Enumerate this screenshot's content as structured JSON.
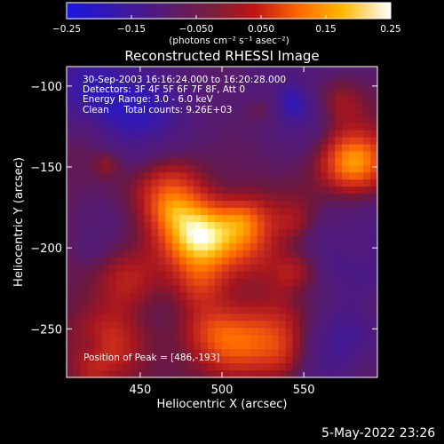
{
  "chart_data": {
    "type": "heatmap",
    "title": "Reconstructed RHESSI Image",
    "xlabel": "Heliocentric X (arcsec)",
    "ylabel": "Heliocentric Y (arcsec)",
    "xlim": [
      405,
      595
    ],
    "ylim": [
      -280,
      -88
    ],
    "x_ticks": [
      450,
      500,
      550
    ],
    "y_ticks": [
      -100,
      -150,
      -200,
      -250
    ],
    "colorbar": {
      "ticks": [
        -0.25,
        -0.15,
        -0.05,
        0.05,
        0.15,
        0.25
      ],
      "tick_labels": [
        "−0.25",
        "−0.15",
        "−0.050",
        "0.050",
        "0.15",
        "0.25"
      ],
      "range": [
        -0.25,
        0.25
      ],
      "units_label": "(photons cm⁻² s⁻¹ asec⁻²)",
      "colors": [
        "#1a17e0",
        "#4a1a88",
        "#5a1e72",
        "#7a1e3c",
        "#a6161f",
        "#d6341a",
        "#ff6a00",
        "#ffb100",
        "#fff07a",
        "#ffffff"
      ]
    },
    "sources": [
      {
        "x": 486,
        "y": -193,
        "peak": 0.25,
        "note": "brightest"
      },
      {
        "x": 468,
        "y": -165,
        "peak": 0.13
      },
      {
        "x": 505,
        "y": -260,
        "peak": 0.16
      },
      {
        "x": 580,
        "y": -145,
        "peak": 0.19
      },
      {
        "x": 540,
        "y": -255,
        "peak": 0.11
      },
      {
        "x": 430,
        "y": -260,
        "peak": 0.1
      },
      {
        "x": 520,
        "y": -195,
        "peak": 0.12
      },
      {
        "x": 555,
        "y": -220,
        "peak": 0.08
      }
    ],
    "negative_regions": [
      {
        "x": 420,
        "y": -100
      },
      {
        "x": 560,
        "y": -110
      },
      {
        "x": 570,
        "y": -260
      },
      {
        "x": 455,
        "y": -115
      },
      {
        "x": 580,
        "y": -200
      }
    ],
    "info_lines": [
      "30-Sep-2003 16:16:24.000 to 16:20:28.000",
      "Detectors: 3F 4F 5F 6F 7F 8F, Att 0",
      "Energy Range: 3.0 - 6.0 keV",
      "Clean     Total counts: 9.26E+03"
    ],
    "peak_note": "Position of Peak = [486,-193]"
  },
  "footer_date": "5-May-2022 23:26"
}
